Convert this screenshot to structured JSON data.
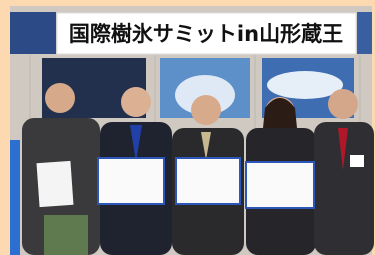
{
  "banner": {
    "text": "国際樹氷サミットin山形蔵王"
  }
}
